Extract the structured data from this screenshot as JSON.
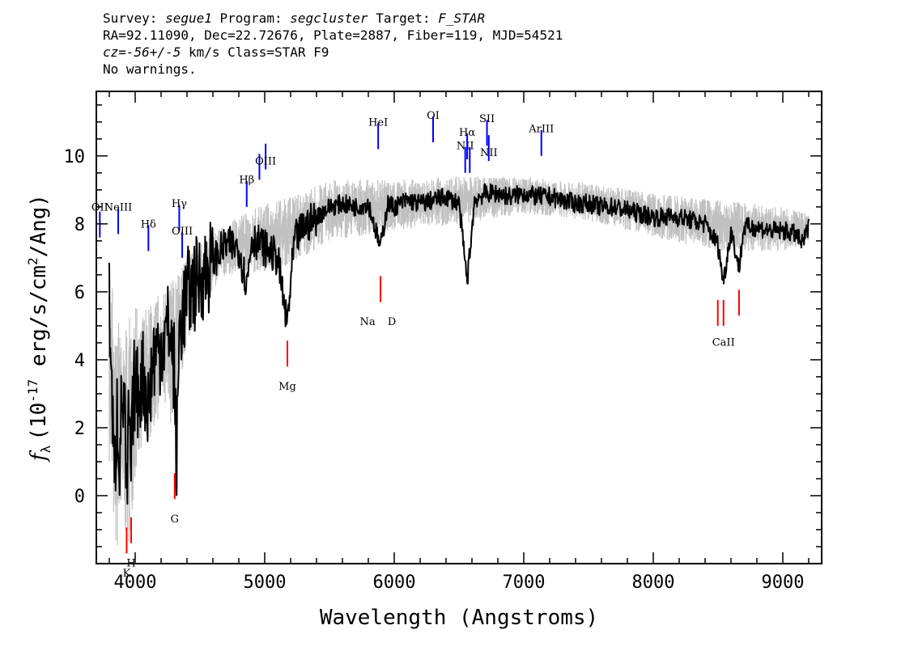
{
  "header": {
    "survey_label": "Survey:",
    "survey": "segue1",
    "program_label": "Program:",
    "program": "segcluster",
    "target_label": "Target:",
    "target": "F_STAR",
    "line2": "RA=92.11090, Dec=22.72676, Plate=2887, Fiber=119, MJD=54521",
    "cz_label": "cz=",
    "cz_value": "-56+/-5",
    "cz_unit": "km/s",
    "class_text": "Class=STAR F9",
    "warnings": "No warnings."
  },
  "chart_data": {
    "type": "line",
    "xlabel": "Wavelength (Angstroms)",
    "ylabel": "f_λ (10^-17 erg/s/cm^2/Ang)",
    "ylabel_parts": {
      "f": "f",
      "lambda": "λ",
      "open": "(10",
      "exp1": "-17",
      "mid": " erg/s/cm",
      "exp2": "2",
      "close": "/Ang)"
    },
    "xlim": [
      3700,
      9300
    ],
    "ylim": [
      -2.0,
      11.9
    ],
    "xticks": [
      4000,
      5000,
      6000,
      7000,
      8000,
      9000
    ],
    "yticks": [
      0,
      2,
      4,
      6,
      8,
      10
    ],
    "grid": false,
    "series": [
      {
        "role": "flux (smoothed)",
        "color": "#000000",
        "points": [
          [
            3800,
            5.9
          ],
          [
            3820,
            3.0
          ],
          [
            3840,
            0.2
          ],
          [
            3860,
            2.6
          ],
          [
            3880,
            1.2
          ],
          [
            3900,
            3.0
          ],
          [
            3920,
            2.4
          ],
          [
            3933,
            -0.6
          ],
          [
            3950,
            2.2
          ],
          [
            3968,
            0.8
          ],
          [
            3990,
            3.3
          ],
          [
            4020,
            3.0
          ],
          [
            4060,
            3.6
          ],
          [
            4102,
            2.6
          ],
          [
            4140,
            4.1
          ],
          [
            4200,
            4.4
          ],
          [
            4260,
            5.0
          ],
          [
            4300,
            3.8
          ],
          [
            4320,
            0.8
          ],
          [
            4340,
            4.9
          ],
          [
            4400,
            5.9
          ],
          [
            4500,
            6.4
          ],
          [
            4600,
            6.9
          ],
          [
            4700,
            7.4
          ],
          [
            4800,
            7.3
          ],
          [
            4861,
            6.2
          ],
          [
            4900,
            7.6
          ],
          [
            5000,
            7.3
          ],
          [
            5100,
            7.0
          ],
          [
            5172,
            5.0
          ],
          [
            5230,
            7.5
          ],
          [
            5300,
            7.9
          ],
          [
            5400,
            8.2
          ],
          [
            5500,
            8.5
          ],
          [
            5600,
            8.6
          ],
          [
            5700,
            8.5
          ],
          [
            5800,
            8.6
          ],
          [
            5893,
            7.3
          ],
          [
            5950,
            8.6
          ],
          [
            6000,
            8.5
          ],
          [
            6100,
            8.7
          ],
          [
            6200,
            8.6
          ],
          [
            6300,
            8.7
          ],
          [
            6400,
            8.8
          ],
          [
            6500,
            8.6
          ],
          [
            6563,
            6.3
          ],
          [
            6620,
            8.7
          ],
          [
            6700,
            8.9
          ],
          [
            6800,
            8.9
          ],
          [
            6900,
            8.8
          ],
          [
            7000,
            8.9
          ],
          [
            7100,
            8.8
          ],
          [
            7200,
            8.8
          ],
          [
            7300,
            8.7
          ],
          [
            7400,
            8.6
          ],
          [
            7500,
            8.6
          ],
          [
            7600,
            8.5
          ],
          [
            7700,
            8.5
          ],
          [
            7800,
            8.4
          ],
          [
            7900,
            8.3
          ],
          [
            8000,
            8.2
          ],
          [
            8100,
            8.2
          ],
          [
            8200,
            8.2
          ],
          [
            8300,
            8.1
          ],
          [
            8400,
            8.0
          ],
          [
            8498,
            7.4
          ],
          [
            8542,
            6.3
          ],
          [
            8600,
            7.8
          ],
          [
            8662,
            6.7
          ],
          [
            8700,
            7.9
          ],
          [
            8800,
            7.9
          ],
          [
            8900,
            7.8
          ],
          [
            9000,
            7.8
          ],
          [
            9100,
            7.7
          ],
          [
            9150,
            7.4
          ],
          [
            9200,
            7.9
          ]
        ]
      },
      {
        "role": "flux uncertainty band",
        "color": "#c0c0c0",
        "points_low": [
          [
            3800,
            1.0
          ],
          [
            3850,
            -1.9
          ],
          [
            3900,
            -1.0
          ],
          [
            3950,
            -1.5
          ],
          [
            4000,
            0.5
          ],
          [
            4100,
            1.5
          ],
          [
            4200,
            2.5
          ],
          [
            4300,
            2.0
          ],
          [
            4400,
            4.5
          ],
          [
            4500,
            5.5
          ],
          [
            4700,
            6.5
          ],
          [
            5000,
            6.6
          ],
          [
            5200,
            6.8
          ],
          [
            5500,
            7.5
          ],
          [
            6000,
            7.8
          ],
          [
            6500,
            8.0
          ],
          [
            7000,
            8.3
          ],
          [
            7500,
            8.1
          ],
          [
            8000,
            7.6
          ],
          [
            8500,
            7.2
          ],
          [
            9000,
            7.2
          ],
          [
            9200,
            7.4
          ]
        ],
        "points_high": [
          [
            3800,
            7.0
          ],
          [
            3850,
            5.5
          ],
          [
            3900,
            5.0
          ],
          [
            3950,
            5.2
          ],
          [
            4000,
            5.6
          ],
          [
            4100,
            5.5
          ],
          [
            4200,
            6.0
          ],
          [
            4300,
            6.4
          ],
          [
            4400,
            7.0
          ],
          [
            4500,
            7.4
          ],
          [
            4700,
            8.0
          ],
          [
            5000,
            8.6
          ],
          [
            5200,
            8.8
          ],
          [
            5500,
            9.3
          ],
          [
            6000,
            9.3
          ],
          [
            6500,
            9.4
          ],
          [
            7000,
            9.4
          ],
          [
            7500,
            9.2
          ],
          [
            8000,
            8.9
          ],
          [
            8500,
            8.7
          ],
          [
            9000,
            8.5
          ],
          [
            9200,
            8.3
          ]
        ]
      }
    ],
    "emission_lines": [
      {
        "label": "OII",
        "x": 3727,
        "y": 7.6,
        "label_y": 8.25,
        "color": "#0000ff"
      },
      {
        "label": "NeIII",
        "x": 3869,
        "y": 7.7,
        "label_y": 8.25,
        "color": "#0000ff"
      },
      {
        "label": "Hδ",
        "x": 4102,
        "y": 7.2,
        "label_y": 7.75,
        "color": "#0000ff"
      },
      {
        "label": "Hγ",
        "x": 4340,
        "y": 7.8,
        "label_y": 8.35,
        "color": "#0000ff"
      },
      {
        "label": "OIII",
        "x": 4363,
        "y": 7.0,
        "label_y": 7.55,
        "color": "#0000ff"
      },
      {
        "label": "Hβ",
        "x": 4861,
        "y": 8.5,
        "label_y": 9.05,
        "color": "#0000ff"
      },
      {
        "label": "",
        "x": 4959,
        "y": 9.3,
        "label_y": 9.3,
        "color": "#0000ff"
      },
      {
        "label": "OIII",
        "x": 5007,
        "y": 9.6,
        "label_y": 9.6,
        "color": "#0000ff"
      },
      {
        "label": "HeI",
        "x": 5876,
        "y": 10.2,
        "label_y": 10.75,
        "color": "#0000ff"
      },
      {
        "label": "OI",
        "x": 6300,
        "y": 10.4,
        "label_y": 10.95,
        "color": "#0000ff"
      },
      {
        "label": "NII",
        "x": 6548,
        "y": 9.5,
        "label_y": 10.05,
        "color": "#0000ff"
      },
      {
        "label": "Hα",
        "x": 6563,
        "y": 9.9,
        "label_y": 10.45,
        "color": "#0000ff"
      },
      {
        "label": "",
        "x": 6583,
        "y": 9.5,
        "label_y": 9.5,
        "color": "#0000ff"
      },
      {
        "label": "SII",
        "x": 6716,
        "y": 10.3,
        "label_y": 10.85,
        "color": "#0000ff"
      },
      {
        "label": "NII",
        "x": 6730,
        "y": 9.85,
        "label_y": 9.85,
        "color": "#0000ff"
      },
      {
        "label": "ArIII",
        "x": 7136,
        "y": 10.0,
        "label_y": 10.55,
        "color": "#0000ff"
      }
    ],
    "absorption_lines": [
      {
        "label": "K",
        "x": 3934,
        "y": -1.7,
        "label_y": -2.05,
        "color": "#ff0000"
      },
      {
        "label": "H",
        "x": 3969,
        "y": -1.4,
        "label_y": -1.75,
        "color": "#ff0000"
      },
      {
        "label": "G",
        "x": 4305,
        "y": -0.1,
        "label_y": -0.45,
        "color": "#ff0000"
      },
      {
        "label": "Mg",
        "x": 5175,
        "y": 3.8,
        "label_y": 3.45,
        "color": "#ff0000"
      },
      {
        "label": "Na",
        "x": 5894,
        "y": 5.7,
        "label_y": 5.35,
        "color": "#ff0000"
      },
      {
        "label": "D",
        "x": 5894,
        "y": 5.7,
        "label_y": 5.35,
        "color": "#ff0000"
      },
      {
        "label": "",
        "x": 8498,
        "y": 5.0,
        "label_y": 5.0,
        "color": "#ff0000"
      },
      {
        "label": "CaII",
        "x": 8542,
        "y": 5.0,
        "label_y": 4.75,
        "color": "#ff0000"
      },
      {
        "label": "",
        "x": 8662,
        "y": 5.3,
        "label_y": 5.3,
        "color": "#ff0000"
      }
    ]
  }
}
